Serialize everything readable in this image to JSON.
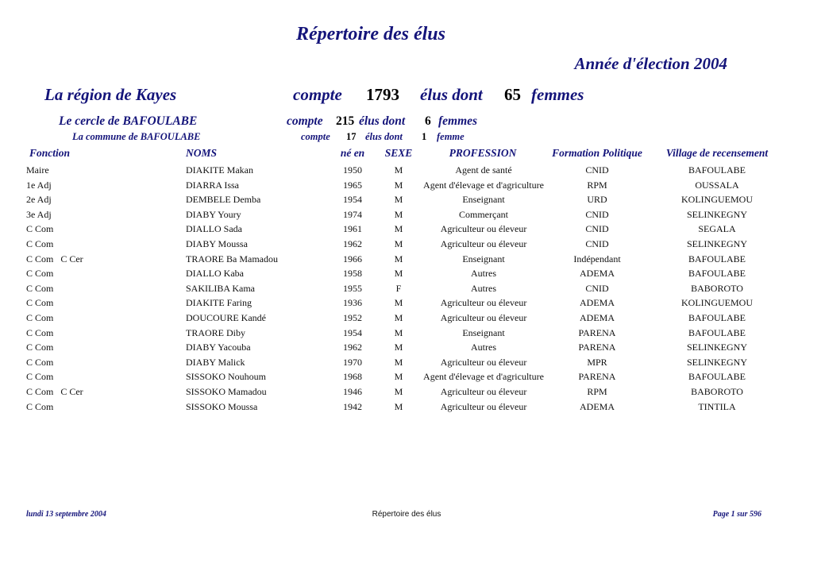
{
  "title": "Répertoire des élus",
  "year_label": "Année d'élection 2004",
  "region": {
    "label": "La région de Kayes",
    "compte": "compte",
    "count": "1793",
    "elus_dont": "élus dont",
    "women": "65",
    "femmes": "femmes"
  },
  "cercle": {
    "label": "Le cercle de  BAFOULABE",
    "compte": "compte",
    "count": "215",
    "elus_dont": "élus dont",
    "women": "6",
    "femmes": "femmes"
  },
  "commune": {
    "label": "La commune de BAFOULABE",
    "compte": "compte",
    "count": "17",
    "elus_dont": "élus dont",
    "women": "1",
    "femmes": "femme"
  },
  "columns": [
    "Fonction",
    "NOMS",
    "né en",
    "SEXE",
    "PROFESSION",
    "Formation Politique",
    "Village de recensement"
  ],
  "rows": [
    [
      "Maire",
      "DIAKITE Makan",
      "1950",
      "M",
      "Agent de santé",
      "CNID",
      "BAFOULABE"
    ],
    [
      "1e Adj",
      "DIARRA Issa",
      "1965",
      "M",
      "Agent d'élevage et d'agriculture",
      "RPM",
      "OUSSALA"
    ],
    [
      "2e Adj",
      "DEMBELE Demba",
      "1954",
      "M",
      "Enseignant",
      "URD",
      "KOLINGUEMOU"
    ],
    [
      "3e Adj",
      "DIABY Youry",
      "1974",
      "M",
      "Commerçant",
      "CNID",
      "SELINKEGNY"
    ],
    [
      "C Com",
      "DIALLO Sada",
      "1961",
      "M",
      "Agriculteur ou éleveur",
      "CNID",
      "SEGALA"
    ],
    [
      "C Com",
      "DIABY Moussa",
      "1962",
      "M",
      "Agriculteur ou éleveur",
      "CNID",
      "SELINKEGNY"
    ],
    [
      "C Com   C Cer",
      "TRAORE Ba Mamadou",
      "1966",
      "M",
      "Enseignant",
      "Indépendant",
      "BAFOULABE"
    ],
    [
      "C Com",
      "DIALLO Kaba",
      "1958",
      "M",
      "Autres",
      "ADEMA",
      "BAFOULABE"
    ],
    [
      "C Com",
      "SAKILIBA Kama",
      "1955",
      "F",
      "Autres",
      "CNID",
      "BABOROTO"
    ],
    [
      "C Com",
      "DIAKITE Faring",
      "1936",
      "M",
      "Agriculteur ou éleveur",
      "ADEMA",
      "KOLINGUEMOU"
    ],
    [
      "C Com",
      "DOUCOURE Kandé",
      "1952",
      "M",
      "Agriculteur ou éleveur",
      "ADEMA",
      "BAFOULABE"
    ],
    [
      "C Com",
      "TRAORE Diby",
      "1954",
      "M",
      "Enseignant",
      "PARENA",
      "BAFOULABE"
    ],
    [
      "C Com",
      "DIABY Yacouba",
      "1962",
      "M",
      "Autres",
      "PARENA",
      "SELINKEGNY"
    ],
    [
      "C Com",
      "DIABY Malick",
      "1970",
      "M",
      "Agriculteur ou éleveur",
      "MPR",
      "SELINKEGNY"
    ],
    [
      "C Com",
      "SISSOKO Nouhoum",
      "1968",
      "M",
      "Agent d'élevage et d'agriculture",
      "PARENA",
      "BAFOULABE"
    ],
    [
      "C Com   C Cer",
      "SISSOKO Mamadou",
      "1946",
      "M",
      "Agriculteur ou éleveur",
      "RPM",
      "BABOROTO"
    ],
    [
      "C Com",
      "SISSOKO Moussa",
      "1942",
      "M",
      "Agriculteur ou éleveur",
      "ADEMA",
      "TINTILA"
    ]
  ],
  "footer": {
    "date": "lundi 13 septembre 2004",
    "center": "Répertoire des élus",
    "page": "Page 1 sur 596"
  },
  "colors": {
    "heading": "#14147a",
    "text": "#111111"
  }
}
